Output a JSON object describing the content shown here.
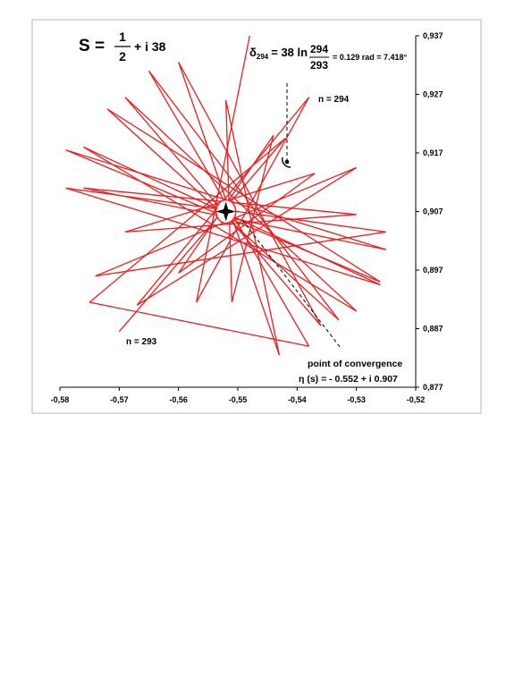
{
  "chart_data": {
    "type": "line",
    "title": {
      "s_prefix": "S =",
      "numerator": "1",
      "denominator": "2",
      "imag_part": "+ i 38"
    },
    "annotations": {
      "delta_symbol": "δ",
      "delta_sub": "294",
      "delta_eq": "= 38 ln",
      "frac_num": "294",
      "frac_den": "293",
      "delta_result": "= 0.129 rad = 7.418°",
      "n_top": "n = 294",
      "n_bottom": "n = 293",
      "convergence_label": "point of convergence",
      "convergence_value": "η (s) = - 0.552 + i 0.907"
    },
    "xlim": [
      -0.58,
      -0.52
    ],
    "ylim": [
      0.877,
      0.937
    ],
    "x_ticks": [
      "-0,58",
      "-0,57",
      "-0,56",
      "-0,55",
      "-0,54",
      "-0,53",
      "-0,52"
    ],
    "y_ticks": [
      "0,877",
      "0,887",
      "0,897",
      "0,907",
      "0,917",
      "0,927",
      "0,937"
    ],
    "line_color": "#ee1c1c",
    "convergence_point": [
      -0.552,
      0.907
    ],
    "series": [
      {
        "x": [
          -0.57,
          -0.542,
          -0.575,
          -0.538,
          -0.565,
          -0.533,
          -0.572,
          -0.526,
          -0.579,
          -0.525,
          -0.576,
          -0.53,
          -0.569,
          -0.537,
          -0.56,
          -0.544,
          -0.551,
          -0.552,
          -0.543,
          -0.56,
          -0.536,
          -0.569,
          -0.53,
          -0.576,
          -0.526,
          -0.579,
          -0.525,
          -0.574,
          -0.53,
          -0.567,
          -0.538,
          -0.557,
          -0.548
        ],
        "y": [
          0.8865,
          0.9195,
          0.8915,
          0.884,
          0.931,
          0.8885,
          0.9245,
          0.895,
          0.9175,
          0.9005,
          0.911,
          0.9065,
          0.9035,
          0.9135,
          0.8965,
          0.92,
          0.8915,
          0.926,
          0.8825,
          0.9325,
          0.8875,
          0.9265,
          0.89,
          0.918,
          0.8945,
          0.911,
          0.9035,
          0.896,
          0.9145,
          0.891,
          0.9265,
          0.8915,
          0.937
        ]
      }
    ]
  }
}
